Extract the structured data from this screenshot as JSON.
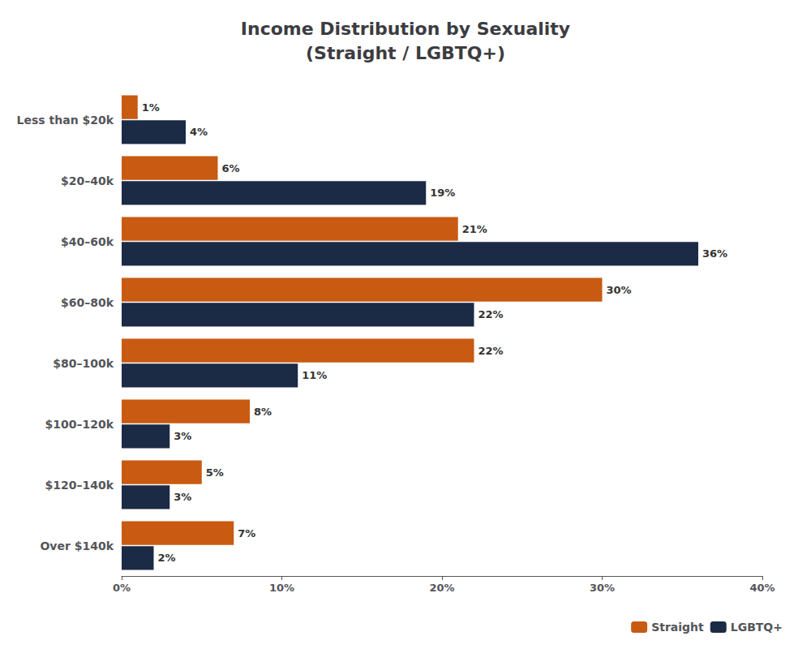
{
  "chart_data": {
    "type": "bar",
    "title": "Income Distribution by Sexuality\n(Straight / LGBTQ+)",
    "orientation": "horizontal",
    "categories": [
      "Less than $20k",
      "$20–40k",
      "$40–60k",
      "$60–80k",
      "$80–100k",
      "$100–120k",
      "$120–140k",
      "Over $140k"
    ],
    "series": [
      {
        "name": "Straight",
        "color": "#C85A11",
        "values": [
          1,
          6,
          21,
          30,
          22,
          8,
          5,
          7
        ],
        "value_labels": [
          "1%",
          "6%",
          "21%",
          "30%",
          "22%",
          "8%",
          "5%",
          "7%"
        ]
      },
      {
        "name": "LGBTQ+",
        "color": "#1B2A45",
        "values": [
          4,
          19,
          36,
          22,
          11,
          3,
          3,
          2
        ],
        "value_labels": [
          "4%",
          "19%",
          "36%",
          "22%",
          "11%",
          "3%",
          "3%",
          "2%"
        ]
      }
    ],
    "xlim": [
      0,
      40
    ],
    "xticks": [
      {
        "value": 0,
        "label": "0%"
      },
      {
        "value": 10,
        "label": "10%"
      },
      {
        "value": 20,
        "label": "20%"
      },
      {
        "value": 30,
        "label": "30%"
      },
      {
        "value": 40,
        "label": "40%"
      }
    ],
    "data_labels": true,
    "grid": false,
    "legend": "lower right"
  }
}
